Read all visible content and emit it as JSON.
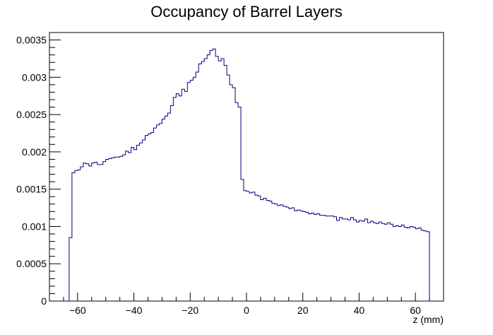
{
  "chart_data": {
    "type": "histogram",
    "title": "Occupancy of Barrel Layers",
    "xlabel": "z (mm)",
    "ylabel": "",
    "xlim": [
      -70,
      70
    ],
    "ylim": [
      0,
      0.0036
    ],
    "x_ticks": [
      -60,
      -40,
      -20,
      0,
      20,
      40,
      60
    ],
    "x_tick_labels": [
      "−60",
      "−40",
      "−20",
      "0",
      "20",
      "40",
      "60"
    ],
    "y_ticks": [
      0,
      0.0005,
      0.001,
      0.0015,
      0.002,
      0.0025,
      0.003,
      0.0035
    ],
    "y_tick_labels": [
      "0",
      "0.0005",
      "0.001",
      "0.0015",
      "0.002",
      "0.0025",
      "0.003",
      "0.0035"
    ],
    "grid": false,
    "legend": "none",
    "colors": {
      "line": "#000080",
      "axis": "#000000",
      "background": "#ffffff"
    },
    "bin_width": 1,
    "bin_start": -63,
    "values": [
      0.00085,
      0.00172,
      0.00175,
      0.00176,
      0.0018,
      0.00185,
      0.00184,
      0.00181,
      0.00185,
      0.00186,
      0.00183,
      0.00183,
      0.00187,
      0.0019,
      0.00191,
      0.00192,
      0.00193,
      0.00193,
      0.00194,
      0.00196,
      0.00201,
      0.00199,
      0.00206,
      0.00203,
      0.00209,
      0.00212,
      0.00216,
      0.00222,
      0.00224,
      0.00226,
      0.00232,
      0.00236,
      0.00238,
      0.00244,
      0.00248,
      0.00252,
      0.00262,
      0.00273,
      0.00278,
      0.00275,
      0.00284,
      0.00281,
      0.00293,
      0.00296,
      0.003,
      0.00307,
      0.00318,
      0.00321,
      0.00325,
      0.0033,
      0.00336,
      0.00338,
      0.00328,
      0.00322,
      0.00325,
      0.00316,
      0.00303,
      0.0029,
      0.00286,
      0.00266,
      0.0026,
      0.00163,
      0.00148,
      0.00147,
      0.00145,
      0.00146,
      0.00142,
      0.00141,
      0.00136,
      0.00138,
      0.00135,
      0.00134,
      0.00131,
      0.0013,
      0.00128,
      0.00129,
      0.00127,
      0.00126,
      0.00124,
      0.00125,
      0.00121,
      0.00122,
      0.00121,
      0.0012,
      0.00119,
      0.00117,
      0.00118,
      0.00116,
      0.00117,
      0.00115,
      0.00115,
      0.00114,
      0.00114,
      0.00114,
      0.00113,
      0.00108,
      0.00112,
      0.0011,
      0.0011,
      0.00109,
      0.00112,
      0.00109,
      0.00106,
      0.00108,
      0.00107,
      0.0011,
      0.00105,
      0.00107,
      0.00105,
      0.00104,
      0.00106,
      0.00104,
      0.00103,
      0.00105,
      0.00103,
      0.001,
      0.00101,
      0.001,
      0.00102,
      0.00099,
      0.00098,
      0.001,
      0.00099,
      0.00097,
      0.00098,
      0.00095,
      0.00094,
      0.00093
    ]
  }
}
